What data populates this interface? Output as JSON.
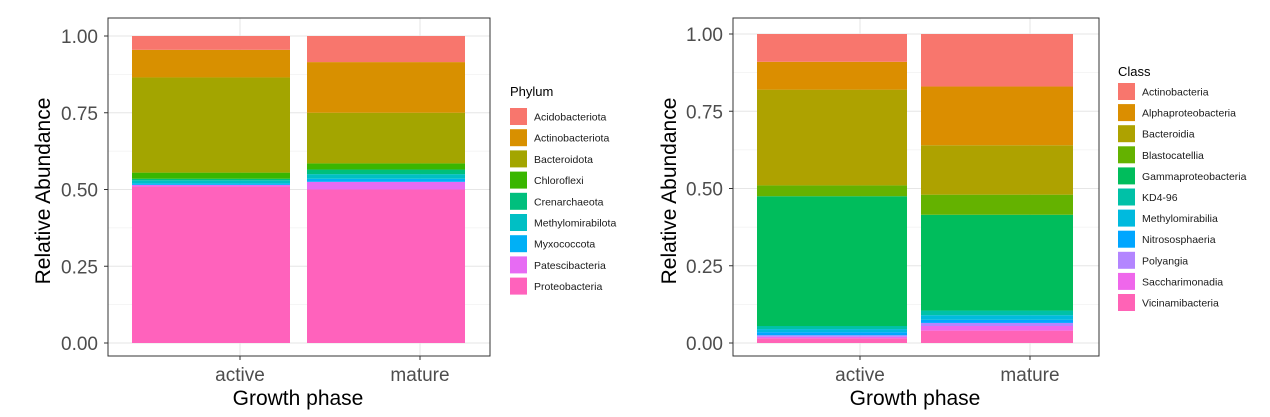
{
  "chart_data": [
    {
      "type": "bar",
      "stacked": true,
      "xlabel": "Growth phase",
      "ylabel": "Relative Abundance",
      "ylim": [
        0,
        1
      ],
      "yticks": [
        "0.00",
        "0.25",
        "0.50",
        "0.75",
        "1.00"
      ],
      "categories": [
        "active",
        "mature"
      ],
      "grid": true,
      "legend_position": "right",
      "legend_title": "Phylum",
      "series": [
        {
          "name": "Acidobacteriota",
          "color": "#F8766D",
          "values": [
            0.045,
            0.085
          ]
        },
        {
          "name": "Actinobacteriota",
          "color": "#D89000",
          "values": [
            0.09,
            0.165
          ]
        },
        {
          "name": "Bacteroidota",
          "color": "#A3A500",
          "values": [
            0.31,
            0.165
          ]
        },
        {
          "name": "Chloroflexi",
          "color": "#39B600",
          "values": [
            0.02,
            0.02
          ]
        },
        {
          "name": "Crenarchaeota",
          "color": "#00BF7D",
          "values": [
            0.005,
            0.015
          ]
        },
        {
          "name": "Methylomirabilota",
          "color": "#00BFC4",
          "values": [
            0.01,
            0.015
          ]
        },
        {
          "name": "Myxococcota",
          "color": "#00B0F6",
          "values": [
            0.005,
            0.01
          ]
        },
        {
          "name": "Patescibacteria",
          "color": "#E76BF3",
          "values": [
            0.005,
            0.025
          ]
        },
        {
          "name": "Proteobacteria",
          "color": "#FF62BC",
          "values": [
            0.51,
            0.5
          ]
        }
      ]
    },
    {
      "type": "bar",
      "stacked": true,
      "xlabel": "Growth phase",
      "ylabel": "Relative Abundance",
      "ylim": [
        0,
        1
      ],
      "yticks": [
        "0.00",
        "0.25",
        "0.50",
        "0.75",
        "1.00"
      ],
      "categories": [
        "active",
        "mature"
      ],
      "grid": true,
      "legend_position": "right",
      "legend_title": "Class",
      "series": [
        {
          "name": "Actinobacteria",
          "color": "#F8766D",
          "values": [
            0.09,
            0.17
          ]
        },
        {
          "name": "Alphaproteobacteria",
          "color": "#DB8E00",
          "values": [
            0.09,
            0.19
          ]
        },
        {
          "name": "Bacteroidia",
          "color": "#AEA200",
          "values": [
            0.31,
            0.16
          ]
        },
        {
          "name": "Blastocatellia",
          "color": "#64B200",
          "values": [
            0.035,
            0.065
          ]
        },
        {
          "name": "Gammaproteobacteria",
          "color": "#00BD5C",
          "values": [
            0.42,
            0.31
          ]
        },
        {
          "name": "KD4-96",
          "color": "#00C1A7",
          "values": [
            0.01,
            0.015
          ]
        },
        {
          "name": "Methylomirabilia",
          "color": "#00BADE",
          "values": [
            0.01,
            0.015
          ]
        },
        {
          "name": "Nitrososphaeria",
          "color": "#00A6FF",
          "values": [
            0.01,
            0.01
          ]
        },
        {
          "name": "Polyangia",
          "color": "#B385FF",
          "values": [
            0.005,
            0.01
          ]
        },
        {
          "name": "Saccharimonadia",
          "color": "#EF67EB",
          "values": [
            0.005,
            0.015
          ]
        },
        {
          "name": "Vicinamibacteria",
          "color": "#FF63B6",
          "values": [
            0.015,
            0.04
          ]
        }
      ]
    }
  ]
}
